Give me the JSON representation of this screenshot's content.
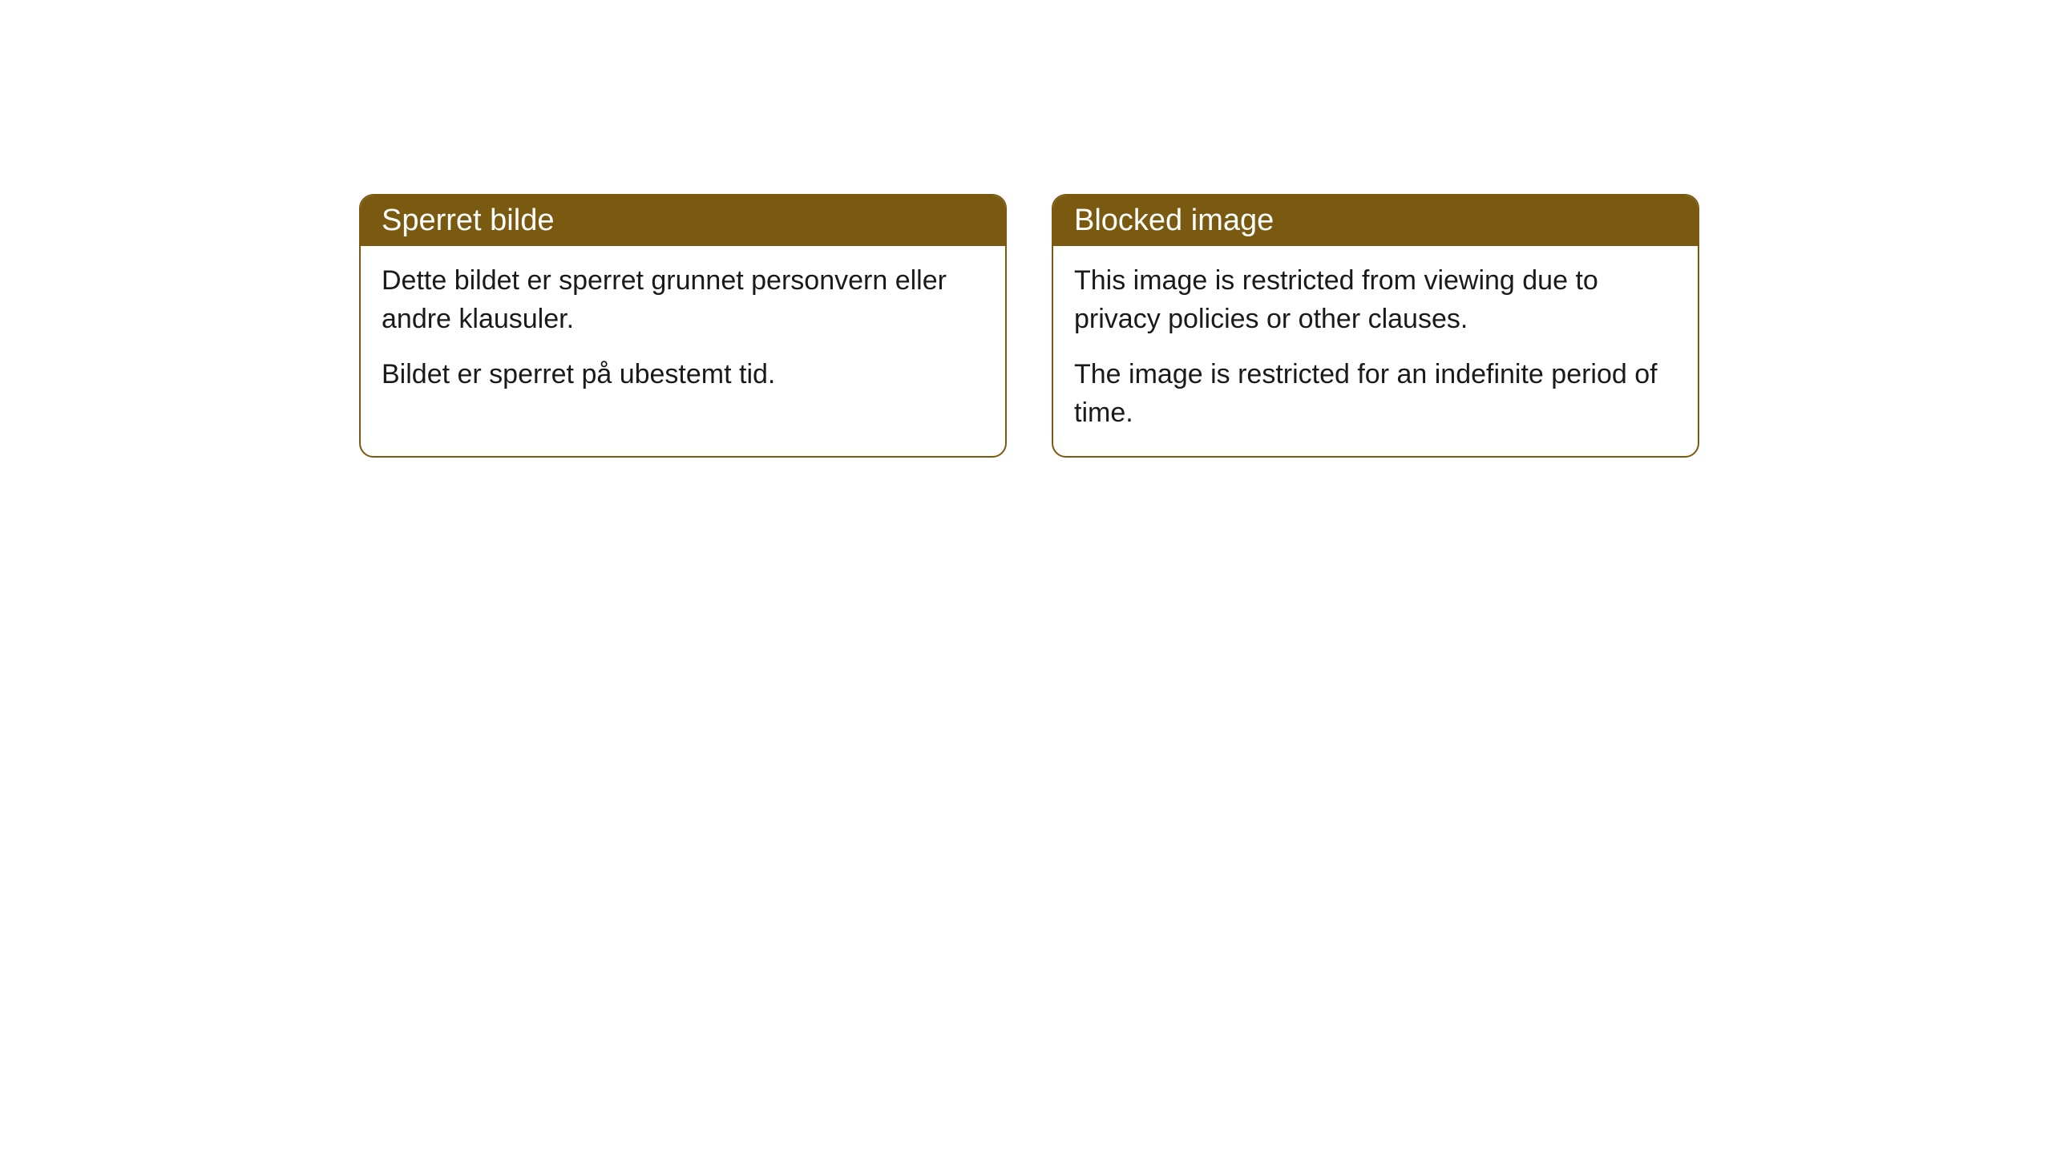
{
  "cards": [
    {
      "title": "Sperret bilde",
      "paragraph1": "Dette bildet er sperret grunnet personvern eller andre klausuler.",
      "paragraph2": "Bildet er sperret på ubestemt tid."
    },
    {
      "title": "Blocked image",
      "paragraph1": "This image is restricted from viewing due to privacy policies or other clauses.",
      "paragraph2": "The image is restricted for an indefinite period of time."
    }
  ],
  "style": {
    "header_background": "#7a5a10",
    "header_text_color": "#ffffff",
    "border_color": "#7a5a10",
    "body_background": "#ffffff",
    "body_text_color": "#1a1a1a",
    "border_radius": 18,
    "header_fontsize": 38,
    "body_fontsize": 34
  }
}
